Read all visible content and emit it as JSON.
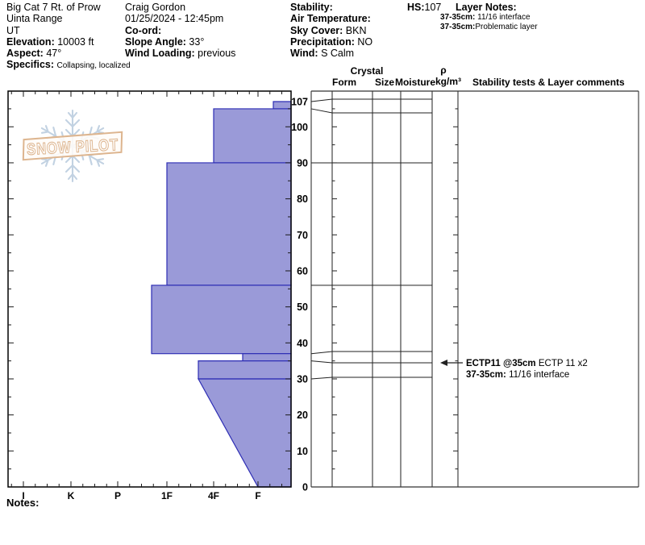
{
  "header": {
    "location": {
      "title": "Big Cat 7 Rt. of Prow",
      "region": "Uinta Range",
      "state": "UT",
      "elevation_label": "Elevation:",
      "elevation": "10003 ft",
      "aspect_label": "Aspect:",
      "aspect": "47°",
      "specifics_label": "Specifics:",
      "specifics": "Collapsing, localized"
    },
    "observer": {
      "name": "Craig Gordon",
      "datetime": "01/25/2024 - 12:45pm",
      "coord_label": "Co-ord:",
      "slope_angle_label": "Slope Angle:",
      "slope_angle": "33°",
      "wind_loading_label": "Wind Loading:",
      "wind_loading": "previous"
    },
    "conditions": {
      "stability_label": "Stability:",
      "air_temp_label": "Air Temperature:",
      "sky_cover_label": "Sky Cover:",
      "sky_cover": "BKN",
      "precip_label": "Precipitation:",
      "precip": "NO",
      "wind_label": "Wind:",
      "wind": "S Calm"
    },
    "hs_label": "HS:",
    "hs": "107",
    "layer_notes_label": "Layer Notes:",
    "layer_notes": [
      {
        "label": "37-35cm:",
        "text": " 11/16 interface"
      },
      {
        "label": "37-35cm:",
        "text": "Problematic layer"
      }
    ]
  },
  "grid_headers": {
    "crystal": "Crystal",
    "form": "Form",
    "size": "Size",
    "moisture": "Moisture",
    "rho": "ρ",
    "rho_unit": "kg/m³",
    "stability": "Stability tests & Layer comments"
  },
  "watermark": {
    "text": "SNOW PILOT"
  },
  "notes_label": "Notes:",
  "chart_data": {
    "type": "area",
    "title": "Snow hardness profile (SnowPilot)",
    "depth_axis": {
      "unit": "cm",
      "max_cm": 107,
      "labels": [
        107,
        100,
        90,
        80,
        70,
        60,
        50,
        40,
        30,
        20,
        10,
        0
      ],
      "minor_tick_cm": 5,
      "major_tick_cm": 10
    },
    "hardness_axis": {
      "categories": [
        "I",
        "K",
        "P",
        "1F",
        "4F",
        "F"
      ],
      "note": "hand hardness, increases leftward"
    },
    "layers": [
      {
        "top_cm": 107,
        "bottom_cm": 105,
        "hardness": "F-"
      },
      {
        "top_cm": 105,
        "bottom_cm": 90,
        "hardness": "4F"
      },
      {
        "top_cm": 90,
        "bottom_cm": 56,
        "hardness": "1F"
      },
      {
        "top_cm": 56,
        "bottom_cm": 37,
        "hardness": "1F+"
      },
      {
        "top_cm": 37,
        "bottom_cm": 35,
        "hardness": "F+"
      },
      {
        "top_cm": 35,
        "bottom_cm": 30,
        "hardness": "4F+"
      },
      {
        "top_cm": 30,
        "bottom_cm": 0,
        "hardness": "4F+",
        "hardness_bottom": "F"
      }
    ],
    "annotations": [
      {
        "arrow": true,
        "bold": "ECTP11 @35cm",
        "text": " ECTP 11 x2",
        "depth_cm": 35,
        "row": 0
      },
      {
        "arrow": false,
        "bold": "37-35cm:",
        "text": " 11/16 interface",
        "depth_cm": 35,
        "row": 1
      }
    ],
    "colors": {
      "layer_fill": "#9a9ad8",
      "layer_stroke": "#2d2db4",
      "axis": "#1a1a1a",
      "watermark_snowflake": "#c2d2e2",
      "watermark_banner": "#ddb58f"
    }
  }
}
